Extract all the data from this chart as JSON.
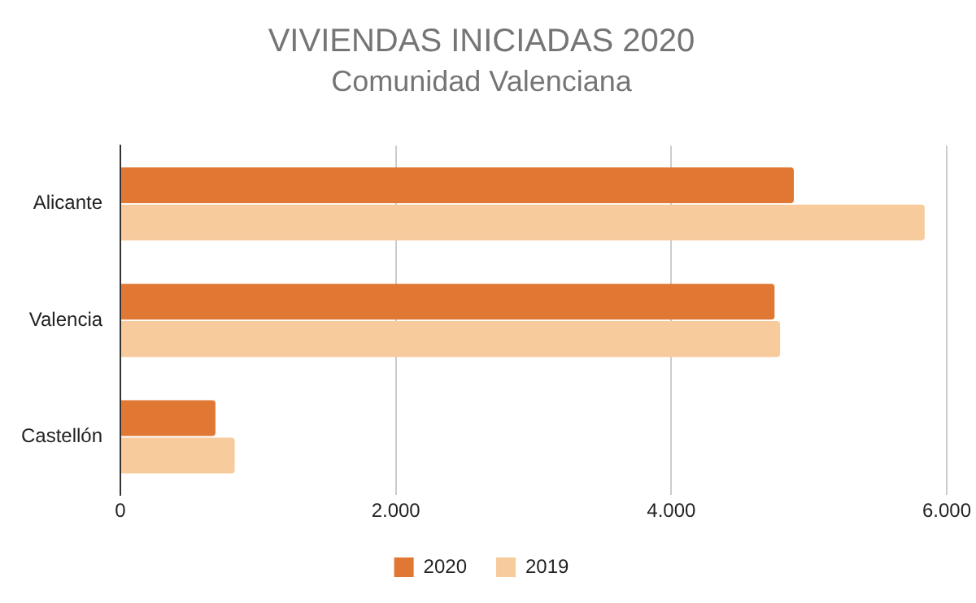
{
  "chart_data": {
    "type": "bar",
    "orientation": "horizontal",
    "title": "VIVIENDAS INICIADAS 2020",
    "subtitle": "Comunidad Valenciana",
    "categories": [
      "Alicante",
      "Valencia",
      "Castellón"
    ],
    "series": [
      {
        "name": "2020",
        "color": "#e07733",
        "values": [
          4890,
          4750,
          690
        ]
      },
      {
        "name": "2019",
        "color": "#f8cb9c",
        "values": [
          5840,
          4790,
          830
        ]
      }
    ],
    "xlim": [
      0,
      6000
    ],
    "xticks": [
      0,
      {
        "value": 2000,
        "label": "2.000"
      },
      {
        "value": 4000,
        "label": "4.000"
      },
      {
        "value": 6000,
        "label": "6.000"
      }
    ],
    "grid": "x",
    "legend": "bottom"
  }
}
